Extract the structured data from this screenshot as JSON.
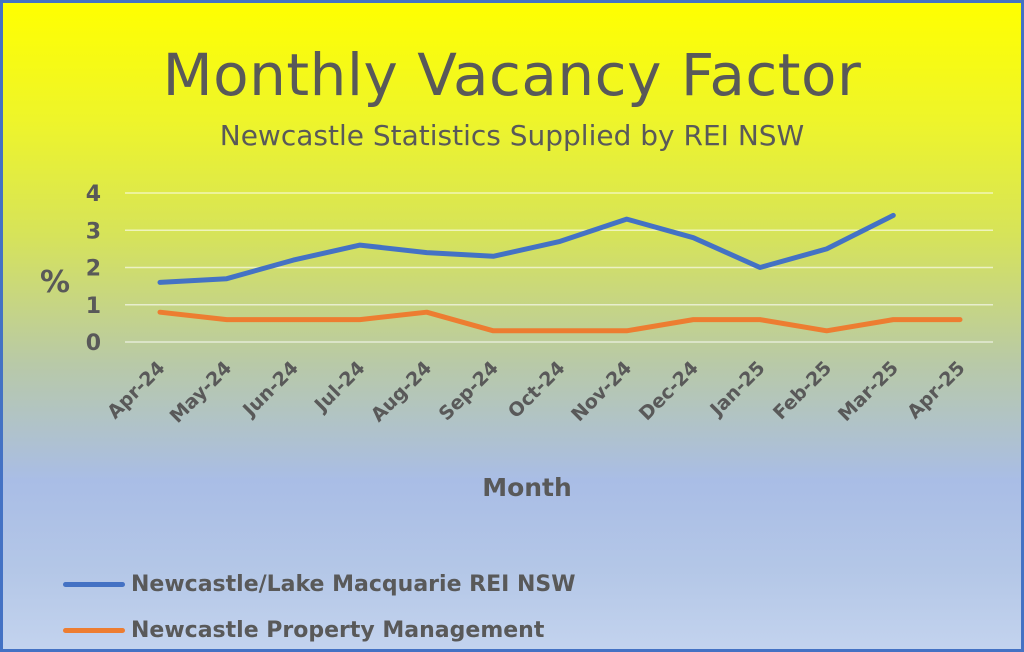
{
  "chart_data": {
    "type": "line",
    "title": "Monthly Vacancy Factor",
    "subtitle": "Newcastle Statistics Supplied by REI NSW",
    "xlabel": "Month",
    "ylabel": "%",
    "ylim": [
      0,
      4
    ],
    "yticks": [
      0,
      1,
      2,
      3,
      4
    ],
    "grid": true,
    "legend_position": "bottom-left",
    "categories": [
      "Apr-24",
      "May-24",
      "Jun-24",
      "Jul-24",
      "Aug-24",
      "Sep-24",
      "Oct-24",
      "Nov-24",
      "Dec-24",
      "Jan-25",
      "Feb-25",
      "Mar-25",
      "Apr-25"
    ],
    "series": [
      {
        "name": "Newcastle/Lake Macquarie REI NSW",
        "color": "#4472c4",
        "values": [
          1.6,
          1.7,
          2.2,
          2.6,
          2.4,
          2.3,
          2.7,
          3.3,
          2.8,
          2.0,
          2.5,
          3.4,
          null
        ]
      },
      {
        "name": "Newcastle Property Management",
        "color": "#ed7d31",
        "values": [
          0.8,
          0.6,
          0.6,
          0.6,
          0.8,
          0.3,
          0.3,
          0.3,
          0.6,
          0.6,
          0.3,
          0.6,
          0.6
        ]
      }
    ]
  }
}
